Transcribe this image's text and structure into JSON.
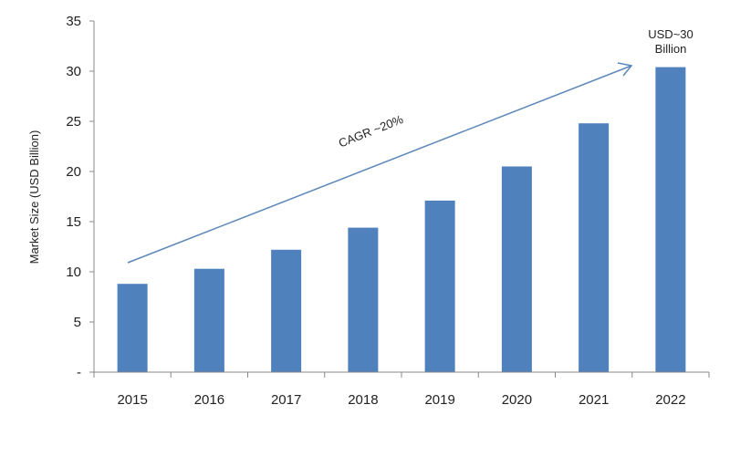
{
  "chart_data": {
    "type": "bar",
    "categories": [
      "2015",
      "2016",
      "2017",
      "2018",
      "2019",
      "2020",
      "2021",
      "2022"
    ],
    "values": [
      8.8,
      10.3,
      12.2,
      14.4,
      17.1,
      20.5,
      24.8,
      30.4
    ],
    "title": "",
    "xlabel": "",
    "ylabel": "Market Size (USD Billion)",
    "ylim": [
      0,
      35
    ],
    "yticks": [
      0,
      5,
      10,
      15,
      20,
      25,
      30,
      35
    ],
    "ytick_labels": [
      "-",
      "5",
      "10",
      "15",
      "20",
      "25",
      "30",
      "35"
    ],
    "grid": false,
    "legend": "none",
    "bar_color": "#4F81BD",
    "annotations": {
      "cagr": "CAGR ~20%",
      "end_value_line1": "USD~30",
      "end_value_line2": "Billion"
    },
    "arrow_color": "#5B87B8"
  }
}
